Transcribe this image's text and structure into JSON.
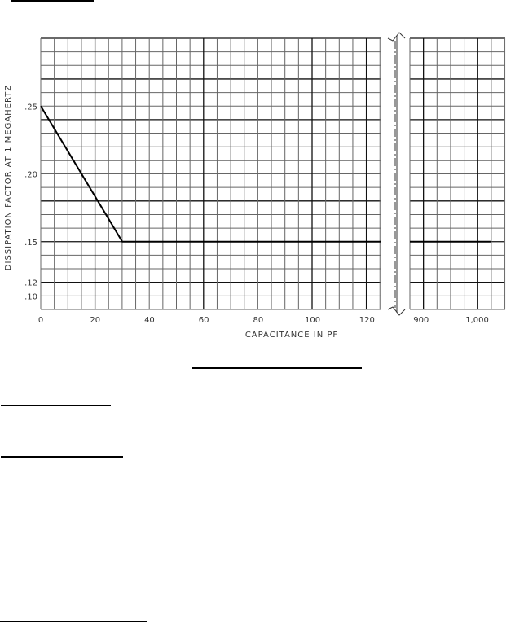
{
  "chart_data": {
    "type": "line",
    "xlabel": "CAPACITANCE IN PF",
    "ylabel": "DISSIPATION FACTOR AT 1 MEGAHERTZ",
    "x_axis_broken": true,
    "segments": [
      {
        "xlim": [
          0,
          125
        ],
        "xticks": [
          0,
          20,
          40,
          60,
          80,
          100,
          120
        ],
        "xtick_labels": [
          "0",
          "20",
          "40",
          "60",
          "80",
          "100",
          "120"
        ]
      },
      {
        "xlim": [
          880,
          1050
        ],
        "xticks": [
          900,
          1000
        ],
        "xtick_labels": [
          "900",
          "1,000"
        ]
      }
    ],
    "ylim": [
      0.1,
      0.3
    ],
    "yticks": [
      0.25,
      0.2,
      0.15,
      0.12,
      0.1
    ],
    "ytick_labels": [
      ".25",
      ".20",
      ".15",
      ".12",
      ".10"
    ],
    "grid": true,
    "series": [
      {
        "points": [
          [
            0,
            0.25
          ],
          [
            30,
            0.15
          ],
          [
            125,
            0.15
          ]
        ]
      },
      {
        "points": [
          [
            880,
            0.15
          ],
          [
            1025,
            0.15
          ]
        ]
      }
    ],
    "line_color": "#000000",
    "grid_color": "#555555"
  }
}
